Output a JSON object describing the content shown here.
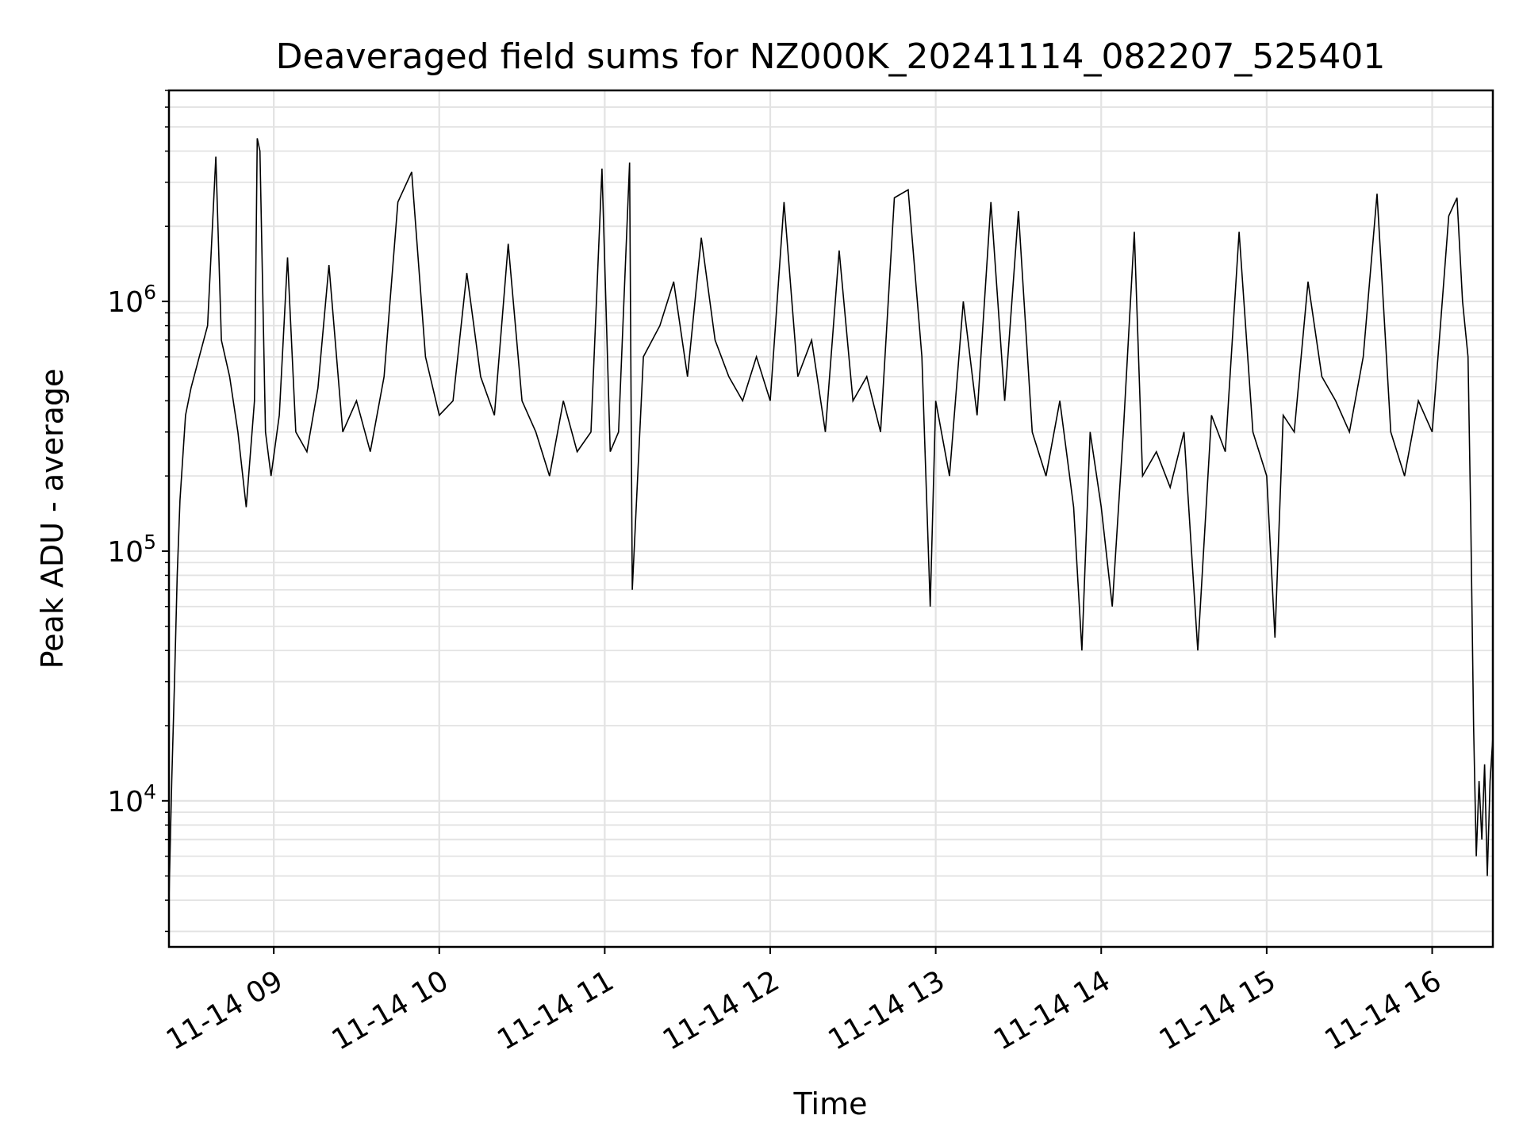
{
  "chart_data": {
    "type": "line",
    "title": "Deaveraged field sums for NZ000K_20241114_082207_525401",
    "xlabel": "Time",
    "ylabel": "Peak ADU - average",
    "yscale": "log",
    "ylim": [
      2600,
      7000000
    ],
    "xlim": [
      "2024-11-14 08:22",
      "2024-11-14 16:22"
    ],
    "grid": true,
    "color": "#000000",
    "x_ticks": [
      {
        "t": "2024-11-14 09:00",
        "label": "11-14 09"
      },
      {
        "t": "2024-11-14 10:00",
        "label": "11-14 10"
      },
      {
        "t": "2024-11-14 11:00",
        "label": "11-14 11"
      },
      {
        "t": "2024-11-14 12:00",
        "label": "11-14 12"
      },
      {
        "t": "2024-11-14 13:00",
        "label": "11-14 13"
      },
      {
        "t": "2024-11-14 14:00",
        "label": "11-14 14"
      },
      {
        "t": "2024-11-14 15:00",
        "label": "11-14 15"
      },
      {
        "t": "2024-11-14 16:00",
        "label": "11-14 16"
      }
    ],
    "y_ticks": [
      {
        "value": 10000,
        "base": "10",
        "exp": "4"
      },
      {
        "value": 100000,
        "base": "10",
        "exp": "5"
      },
      {
        "value": 1000000,
        "base": "10",
        "exp": "6"
      }
    ],
    "series": [
      {
        "points": [
          [
            "08:22",
            4000
          ],
          [
            "08:23",
            12000
          ],
          [
            "08:24",
            30000
          ],
          [
            "08:25",
            80000
          ],
          [
            "08:26",
            160000
          ],
          [
            "08:28",
            350000
          ],
          [
            "08:30",
            450000
          ],
          [
            "08:33",
            600000
          ],
          [
            "08:36",
            800000
          ],
          [
            "08:39",
            3800000
          ],
          [
            "08:41",
            700000
          ],
          [
            "08:44",
            500000
          ],
          [
            "08:47",
            300000
          ],
          [
            "08:50",
            150000
          ],
          [
            "08:53",
            400000
          ],
          [
            "08:54",
            4500000
          ],
          [
            "08:55",
            4000000
          ],
          [
            "08:57",
            300000
          ],
          [
            "08:59",
            200000
          ],
          [
            "09:02",
            350000
          ],
          [
            "09:05",
            1500000
          ],
          [
            "09:08",
            300000
          ],
          [
            "09:12",
            250000
          ],
          [
            "09:16",
            450000
          ],
          [
            "09:20",
            1400000
          ],
          [
            "09:25",
            300000
          ],
          [
            "09:30",
            400000
          ],
          [
            "09:35",
            250000
          ],
          [
            "09:40",
            500000
          ],
          [
            "09:45",
            2500000
          ],
          [
            "09:50",
            3300000
          ],
          [
            "09:55",
            600000
          ],
          [
            "10:00",
            350000
          ],
          [
            "10:05",
            400000
          ],
          [
            "10:10",
            1300000
          ],
          [
            "10:15",
            500000
          ],
          [
            "10:20",
            350000
          ],
          [
            "10:25",
            1700000
          ],
          [
            "10:30",
            400000
          ],
          [
            "10:35",
            300000
          ],
          [
            "10:40",
            200000
          ],
          [
            "10:45",
            400000
          ],
          [
            "10:50",
            250000
          ],
          [
            "10:55",
            300000
          ],
          [
            "10:59",
            3400000
          ],
          [
            "11:02",
            250000
          ],
          [
            "11:05",
            300000
          ],
          [
            "11:09",
            3600000
          ],
          [
            "11:10",
            70000
          ],
          [
            "11:14",
            600000
          ],
          [
            "11:20",
            800000
          ],
          [
            "11:25",
            1200000
          ],
          [
            "11:30",
            500000
          ],
          [
            "11:35",
            1800000
          ],
          [
            "11:40",
            700000
          ],
          [
            "11:45",
            500000
          ],
          [
            "11:50",
            400000
          ],
          [
            "11:55",
            600000
          ],
          [
            "12:00",
            400000
          ],
          [
            "12:05",
            2500000
          ],
          [
            "12:10",
            500000
          ],
          [
            "12:15",
            700000
          ],
          [
            "12:20",
            300000
          ],
          [
            "12:25",
            1600000
          ],
          [
            "12:30",
            400000
          ],
          [
            "12:35",
            500000
          ],
          [
            "12:40",
            300000
          ],
          [
            "12:45",
            2600000
          ],
          [
            "12:50",
            2800000
          ],
          [
            "12:55",
            600000
          ],
          [
            "12:58",
            60000
          ],
          [
            "13:00",
            400000
          ],
          [
            "13:05",
            200000
          ],
          [
            "13:10",
            1000000
          ],
          [
            "13:15",
            350000
          ],
          [
            "13:20",
            2500000
          ],
          [
            "13:25",
            400000
          ],
          [
            "13:30",
            2300000
          ],
          [
            "13:35",
            300000
          ],
          [
            "13:40",
            200000
          ],
          [
            "13:45",
            400000
          ],
          [
            "13:50",
            150000
          ],
          [
            "13:53",
            40000
          ],
          [
            "13:56",
            300000
          ],
          [
            "14:00",
            150000
          ],
          [
            "14:04",
            60000
          ],
          [
            "14:08",
            300000
          ],
          [
            "14:12",
            1900000
          ],
          [
            "14:15",
            200000
          ],
          [
            "14:20",
            250000
          ],
          [
            "14:25",
            180000
          ],
          [
            "14:30",
            300000
          ],
          [
            "14:35",
            40000
          ],
          [
            "14:40",
            350000
          ],
          [
            "14:45",
            250000
          ],
          [
            "14:50",
            1900000
          ],
          [
            "14:55",
            300000
          ],
          [
            "15:00",
            200000
          ],
          [
            "15:03",
            45000
          ],
          [
            "15:06",
            350000
          ],
          [
            "15:10",
            300000
          ],
          [
            "15:15",
            1200000
          ],
          [
            "15:20",
            500000
          ],
          [
            "15:25",
            400000
          ],
          [
            "15:30",
            300000
          ],
          [
            "15:35",
            600000
          ],
          [
            "15:40",
            2700000
          ],
          [
            "15:45",
            300000
          ],
          [
            "15:50",
            200000
          ],
          [
            "15:55",
            400000
          ],
          [
            "16:00",
            300000
          ],
          [
            "16:03",
            800000
          ],
          [
            "16:06",
            2200000
          ],
          [
            "16:09",
            2600000
          ],
          [
            "16:11",
            1000000
          ],
          [
            "16:13",
            600000
          ],
          [
            "16:14",
            130000
          ],
          [
            "16:15",
            20000
          ],
          [
            "16:16",
            6000
          ],
          [
            "16:17",
            12000
          ],
          [
            "16:18",
            7000
          ],
          [
            "16:19",
            14000
          ],
          [
            "16:20",
            5000
          ],
          [
            "16:21",
            12000
          ],
          [
            "16:22",
            18000
          ]
        ]
      }
    ]
  }
}
